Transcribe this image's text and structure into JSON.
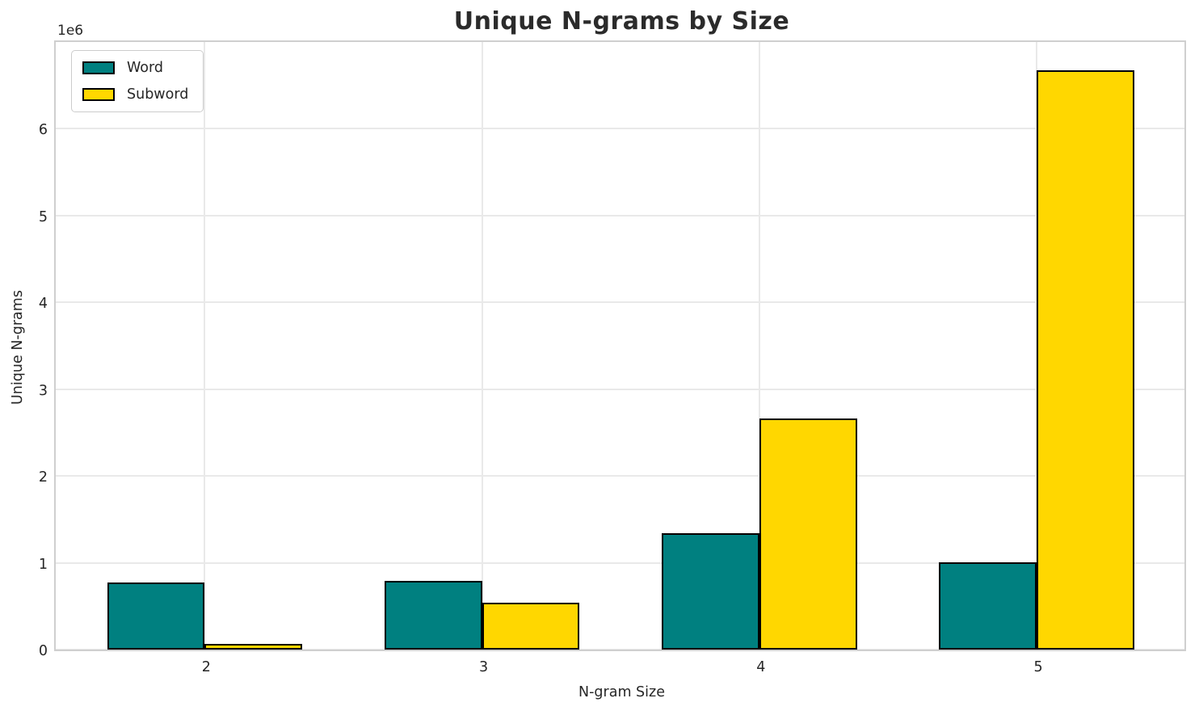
{
  "chart_data": {
    "type": "bar",
    "title": "Unique N-grams by Size",
    "xlabel": "N-gram Size",
    "ylabel": "Unique N-grams",
    "y_offset_label": "1e6",
    "categories": [
      "2",
      "3",
      "4",
      "5"
    ],
    "series": [
      {
        "name": "Word",
        "color": "#008080",
        "values": [
          770000,
          790000,
          1340000,
          1005000
        ]
      },
      {
        "name": "Subword",
        "color": "#FFD700",
        "values": [
          65000,
          540000,
          2660000,
          6670000
        ]
      }
    ],
    "bar_edge_color": "#000000",
    "ylim": [
      0,
      7000000
    ],
    "ytick_values": [
      0,
      1000000,
      2000000,
      3000000,
      4000000,
      5000000,
      6000000
    ],
    "ytick_labels": [
      "0",
      "1",
      "2",
      "3",
      "4",
      "5",
      "6"
    ],
    "xlim": [
      -0.537,
      3.533
    ],
    "bar_width": 0.352,
    "grid": true,
    "legend_position": "upper left",
    "colors": {
      "background": "#ffffff",
      "grid": "#e9e9e9",
      "spine": "#cfcfcf",
      "text": "#262626",
      "title": "#2b2b2b"
    }
  }
}
